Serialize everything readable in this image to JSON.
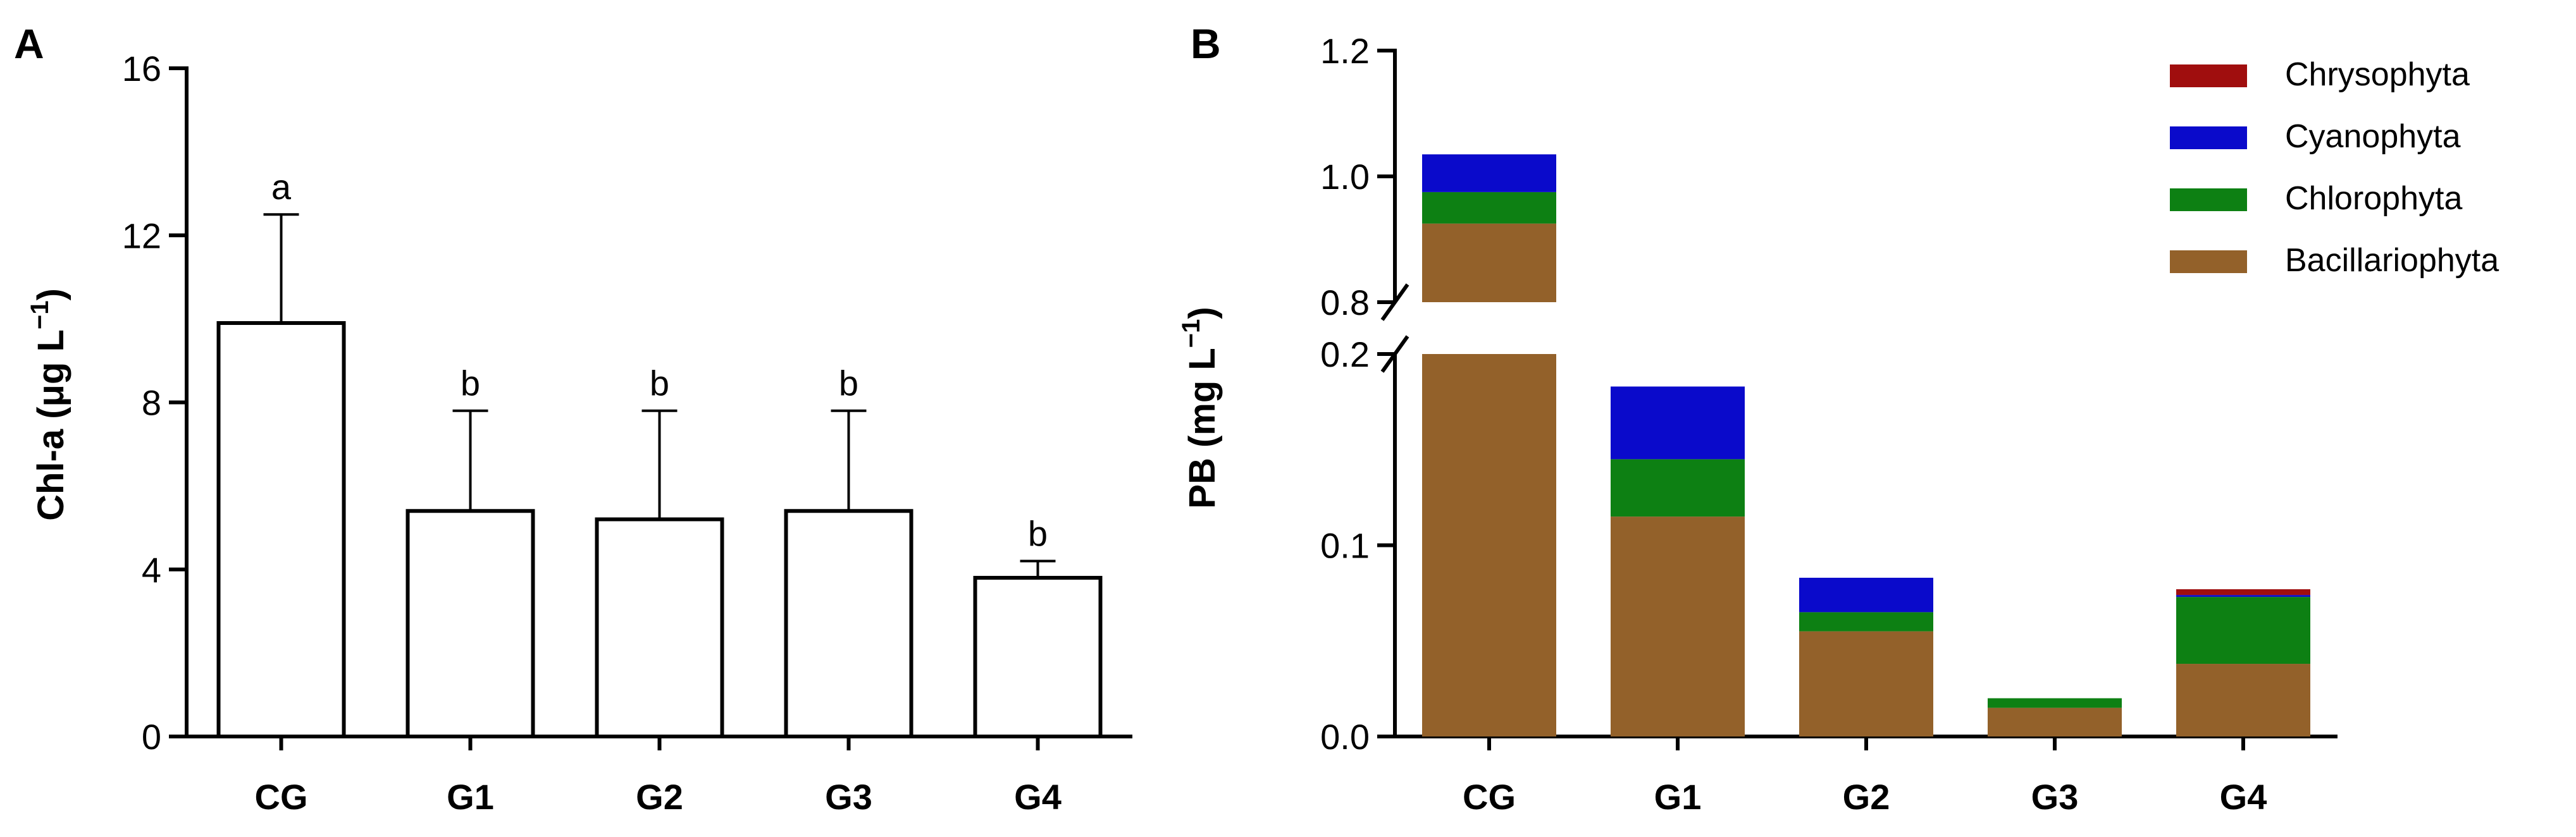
{
  "chart_data": [
    {
      "panel": "A",
      "type": "bar",
      "ylabel_prefix": "Chl-a (μg L",
      "ylabel_sup": "−1",
      "ylabel_suffix": ")",
      "categories": [
        "CG",
        "G1",
        "G2",
        "G3",
        "G4"
      ],
      "values": [
        9.9,
        5.4,
        5.2,
        5.4,
        3.8
      ],
      "errors": [
        2.6,
        2.4,
        2.6,
        2.4,
        0.4
      ],
      "significance": [
        "a",
        "b",
        "b",
        "b",
        "b"
      ],
      "ylim": [
        0,
        16
      ],
      "yticks": [
        "0",
        "4",
        "8",
        "12",
        "16"
      ],
      "bar_fill": "#ffffff",
      "bar_stroke": "#000000"
    },
    {
      "panel": "B",
      "type": "bar",
      "stacked": true,
      "broken_axis": true,
      "ylabel_prefix": "PB (mg L",
      "ylabel_sup": "−1",
      "ylabel_suffix": ")",
      "categories": [
        "CG",
        "G1",
        "G2",
        "G3",
        "G4"
      ],
      "yticks_lower": [
        "0.0",
        "0.1",
        "0.2"
      ],
      "yticks_upper": [
        "0.8",
        "1.0",
        "1.2"
      ],
      "ylim_lower": [
        0,
        0.2
      ],
      "ylim_upper": [
        0.8,
        1.2
      ],
      "series": [
        {
          "name": "Bacillariophyta",
          "color": "#93612A",
          "values": [
            0.925,
            0.115,
            0.055,
            0.015,
            0.038
          ]
        },
        {
          "name": "Chlorophyta",
          "color": "#0D8013",
          "values": [
            0.05,
            0.03,
            0.01,
            0.005,
            0.035
          ]
        },
        {
          "name": "Cyanophyta",
          "color": "#0A0ACB",
          "values": [
            0.06,
            0.038,
            0.018,
            0.0,
            0.001
          ]
        },
        {
          "name": "Chrysophyta",
          "color": "#A00E0E",
          "values": [
            0.0,
            0.0,
            0.0,
            0.0,
            0.003
          ]
        }
      ],
      "legend_order": [
        "Chrysophyta",
        "Cyanophyta",
        "Chlorophyta",
        "Bacillariophyta"
      ],
      "legend_position": "top-right"
    }
  ]
}
